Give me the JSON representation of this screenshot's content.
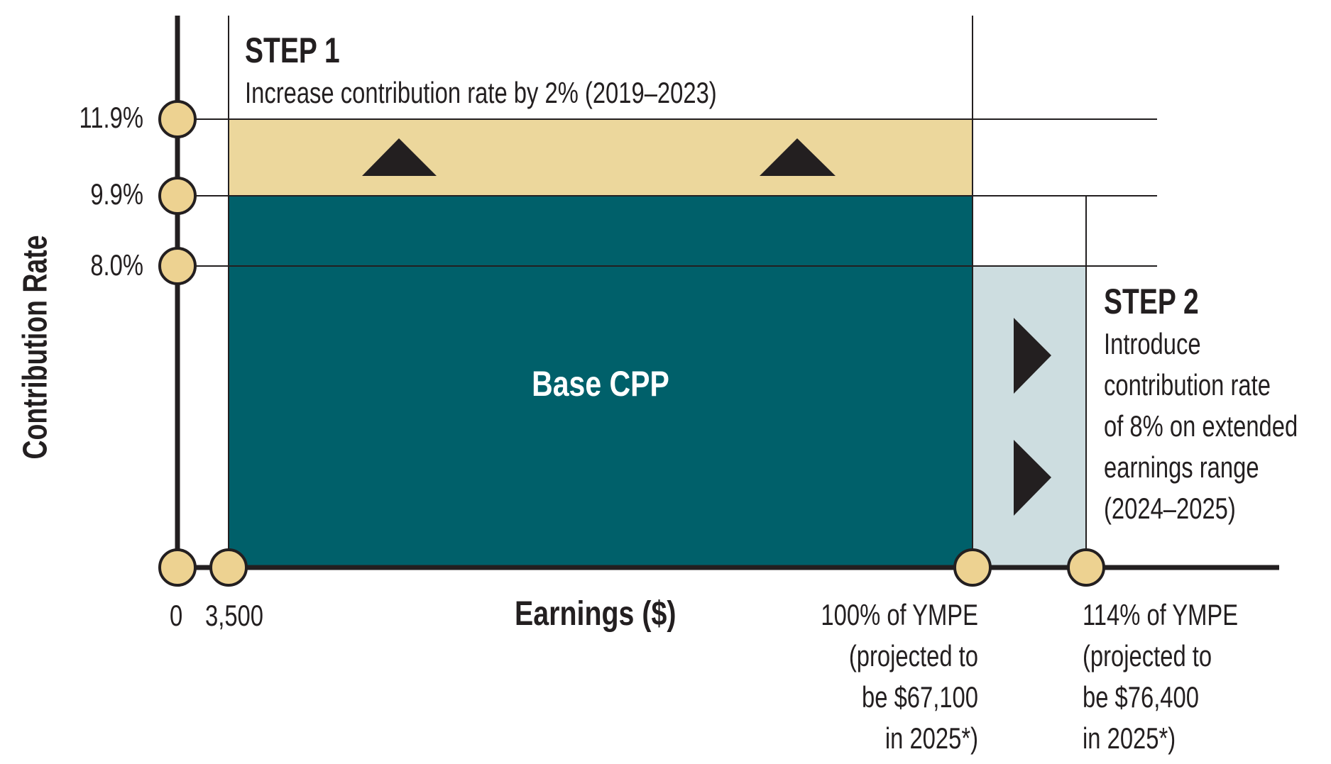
{
  "step1": {
    "title": "STEP 1",
    "description": "Increase contribution rate by 2% (2019–2023)"
  },
  "step2": {
    "title": "STEP 2",
    "description_lines": [
      "Introduce",
      "contribution rate",
      "of 8% on extended",
      "earnings range",
      "(2024–2025)"
    ]
  },
  "base_label": "Base CPP",
  "y_axis": {
    "title": "Contribution Rate",
    "ticks": [
      "11.9%",
      "9.9%",
      "8.0%"
    ]
  },
  "x_axis": {
    "title": "Earnings ($)",
    "ticks": [
      "0",
      "3,500"
    ],
    "ympe_100_lines": [
      "100% of YMPE",
      "(projected to",
      "be $67,100",
      "in 2025*)"
    ],
    "ympe_114_lines": [
      "114% of YMPE",
      "(projected to",
      "be $76,400",
      "in 2025*)"
    ]
  },
  "colors": {
    "base": "#00606a",
    "step1_band": "#ecd79c",
    "step2_band": "#cddde0",
    "marker_fill": "#edd291",
    "axis": "#231f20"
  },
  "icons": {
    "step1_arrows": "triangle-up-icon",
    "step2_arrows": "triangle-right-icon"
  }
}
